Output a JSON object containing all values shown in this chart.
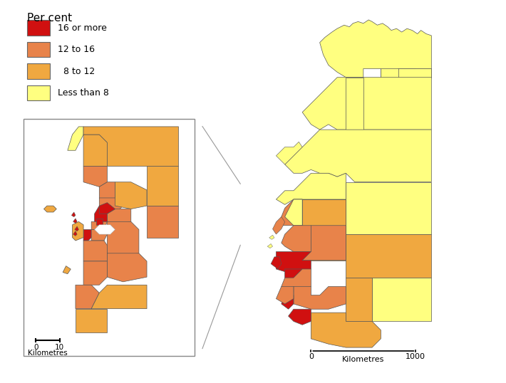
{
  "legend_title": "Per cent",
  "legend_items": [
    {
      "label": "16 or more",
      "color": "#D01010"
    },
    {
      "label": "12 to 16",
      "color": "#E8834A"
    },
    {
      "label": "  8 to 12",
      "color": "#F0A840"
    },
    {
      "label": "Less than 8",
      "color": "#FFFF80"
    }
  ],
  "background_color": "#FFFFFF",
  "border_color": "#333333",
  "colors": {
    "red": "#D01010",
    "orange": "#E8834A",
    "peach": "#F0A840",
    "yellow": "#FFFF80",
    "white": "#FFFFFF"
  }
}
